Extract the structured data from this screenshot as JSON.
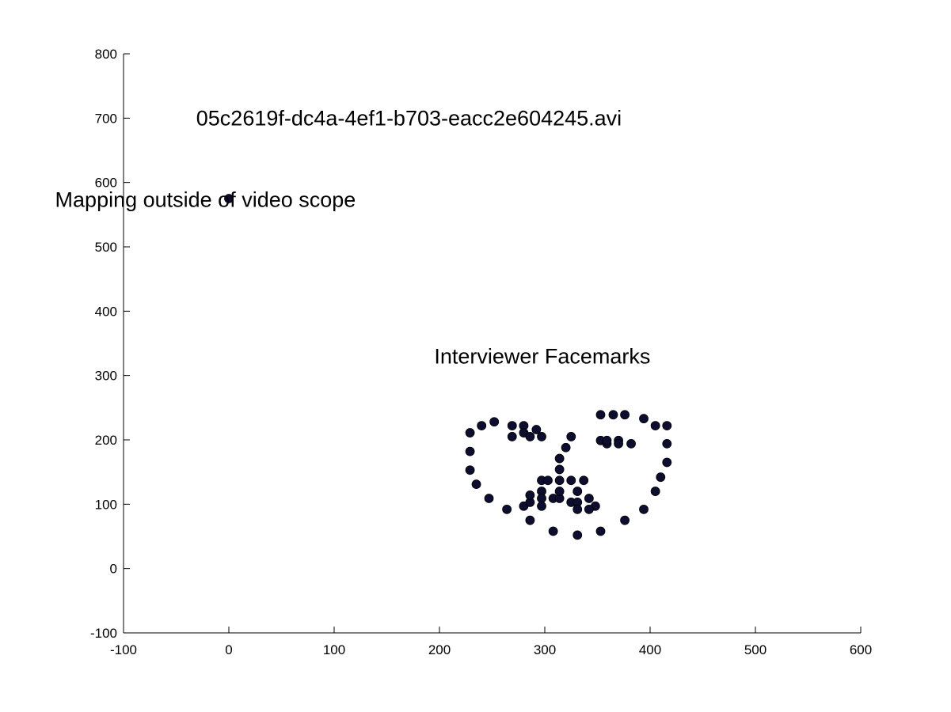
{
  "chart_data": {
    "type": "scatter",
    "title": "",
    "xlabel": "",
    "ylabel": "",
    "xlim": [
      -100,
      600
    ],
    "ylim": [
      -100,
      800
    ],
    "xticks": [
      -100,
      0,
      100,
      200,
      300,
      400,
      500,
      600
    ],
    "yticks": [
      -100,
      0,
      100,
      200,
      300,
      400,
      500,
      600,
      700,
      800
    ],
    "grid": false,
    "legend": "none",
    "marker_color": "#0d0d30",
    "annotations": [
      {
        "text": "05c2619f-dc4a-4ef1-b703-eacc2e604245.avi",
        "x": -31,
        "y": 700
      },
      {
        "text": "Mapping outside of video scope",
        "x": -165,
        "y": 573
      },
      {
        "text": "Interviewer Facemarks",
        "x": 195,
        "y": 330
      }
    ],
    "series": [
      {
        "points": [
          [
            0,
            575
          ],
          [
            229,
            211
          ],
          [
            229,
            182
          ],
          [
            229,
            153
          ],
          [
            235,
            131
          ],
          [
            247,
            109
          ],
          [
            264,
            92
          ],
          [
            286,
            75
          ],
          [
            308,
            58
          ],
          [
            331,
            52
          ],
          [
            353,
            58
          ],
          [
            376,
            75
          ],
          [
            394,
            92
          ],
          [
            405,
            120
          ],
          [
            410,
            142
          ],
          [
            416,
            165
          ],
          [
            416,
            194
          ],
          [
            416,
            222
          ],
          [
            240,
            222
          ],
          [
            252,
            228
          ],
          [
            269,
            222
          ],
          [
            280,
            222
          ],
          [
            292,
            216
          ],
          [
            353,
            239
          ],
          [
            365,
            239
          ],
          [
            376,
            239
          ],
          [
            394,
            233
          ],
          [
            405,
            222
          ],
          [
            269,
            205
          ],
          [
            280,
            211
          ],
          [
            286,
            205
          ],
          [
            297,
            205
          ],
          [
            353,
            199
          ],
          [
            359,
            194
          ],
          [
            370,
            199
          ],
          [
            382,
            194
          ],
          [
            359,
            199
          ],
          [
            370,
            194
          ],
          [
            325,
            205
          ],
          [
            320,
            188
          ],
          [
            314,
            171
          ],
          [
            314,
            154
          ],
          [
            314,
            137
          ],
          [
            297,
            137
          ],
          [
            303,
            137
          ],
          [
            325,
            137
          ],
          [
            337,
            137
          ],
          [
            280,
            97
          ],
          [
            286,
            103
          ],
          [
            286,
            114
          ],
          [
            297,
            120
          ],
          [
            297,
            109
          ],
          [
            308,
            109
          ],
          [
            314,
            109
          ],
          [
            314,
            120
          ],
          [
            325,
            103
          ],
          [
            331,
            120
          ],
          [
            331,
            103
          ],
          [
            342,
            109
          ],
          [
            348,
            97
          ],
          [
            342,
            92
          ],
          [
            331,
            92
          ],
          [
            297,
            97
          ]
        ]
      }
    ]
  }
}
